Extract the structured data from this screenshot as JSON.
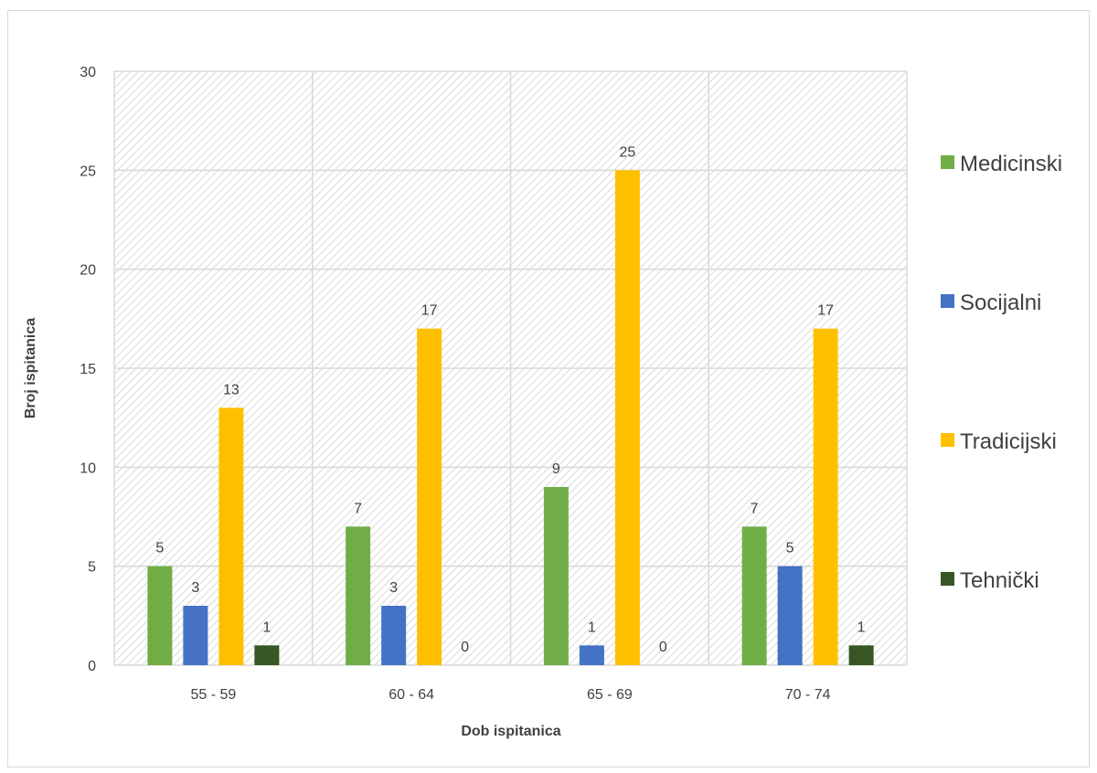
{
  "chart_data": {
    "type": "bar",
    "categories": [
      "55 - 59",
      "60 - 64",
      "65 - 69",
      "70 - 74"
    ],
    "series": [
      {
        "name": "Medicinski",
        "values": [
          5,
          7,
          9,
          7
        ],
        "color": "#70ad47"
      },
      {
        "name": "Socijalni",
        "values": [
          3,
          3,
          1,
          5
        ],
        "color": "#4472c4"
      },
      {
        "name": "Tradicijski",
        "values": [
          13,
          17,
          25,
          17
        ],
        "color": "#ffc000"
      },
      {
        "name": "Tehnički",
        "values": [
          1,
          0,
          0,
          1
        ],
        "color": "#375623"
      }
    ],
    "xlabel": "Dob ispitanica",
    "ylabel": "Broj ispitanica",
    "ylim": [
      0,
      30
    ],
    "yticks": [
      0,
      5,
      10,
      15,
      20,
      25,
      30
    ],
    "grid": true,
    "data_labels": true,
    "legend_position": "right",
    "plot_area_fill": "diagonal hatch"
  }
}
